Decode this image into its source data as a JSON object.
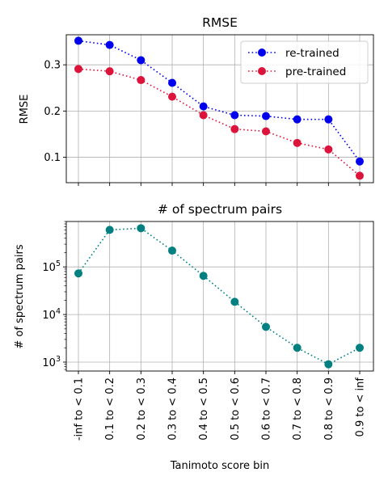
{
  "chart_data": [
    {
      "type": "line",
      "title": "RMSE",
      "xlabel": "",
      "ylabel": "RMSE",
      "categories": [
        "-inf to < 0.1",
        "0.1 to < 0.2",
        "0.2 to < 0.3",
        "0.3 to < 0.4",
        "0.4 to < 0.5",
        "0.5 to < 0.6",
        "0.6 to < 0.7",
        "0.7 to < 0.8",
        "0.8 to < 0.9",
        "0.9 to < inf"
      ],
      "yticks": [
        0.1,
        0.2,
        0.3
      ],
      "ytick_labels": [
        "0.1",
        "0.2",
        "0.3"
      ],
      "ylim": [
        0.045,
        0.365
      ],
      "grid": true,
      "legend": "top-right",
      "series": [
        {
          "name": "re-trained",
          "color": "#0000ee",
          "values": [
            0.352,
            0.343,
            0.31,
            0.261,
            0.21,
            0.191,
            0.189,
            0.182,
            0.182,
            0.091
          ]
        },
        {
          "name": "pre-trained",
          "color": "#dc143c",
          "values": [
            0.291,
            0.286,
            0.267,
            0.231,
            0.191,
            0.161,
            0.156,
            0.131,
            0.117,
            0.06
          ]
        }
      ]
    },
    {
      "type": "line",
      "title": "# of spectrum pairs",
      "xlabel": "Tanimoto score bin",
      "ylabel": "# of spectrum pairs",
      "yscale": "log",
      "categories": [
        "-inf to < 0.1",
        "0.1 to < 0.2",
        "0.2 to < 0.3",
        "0.3 to < 0.4",
        "0.4 to < 0.5",
        "0.5 to < 0.6",
        "0.6 to < 0.7",
        "0.7 to < 0.8",
        "0.8 to < 0.9",
        "0.9 to < inf"
      ],
      "ytick_values": [
        1000,
        10000,
        100000
      ],
      "ytick_exponents": [
        "3",
        "4",
        "5"
      ],
      "ytick_base": "10",
      "ylim": [
        650,
        900000
      ],
      "grid": true,
      "series": [
        {
          "color": "#008080",
          "values": [
            73000,
            600000,
            650000,
            220000,
            65000,
            18500,
            5500,
            2000,
            900,
            2000
          ]
        }
      ]
    }
  ]
}
